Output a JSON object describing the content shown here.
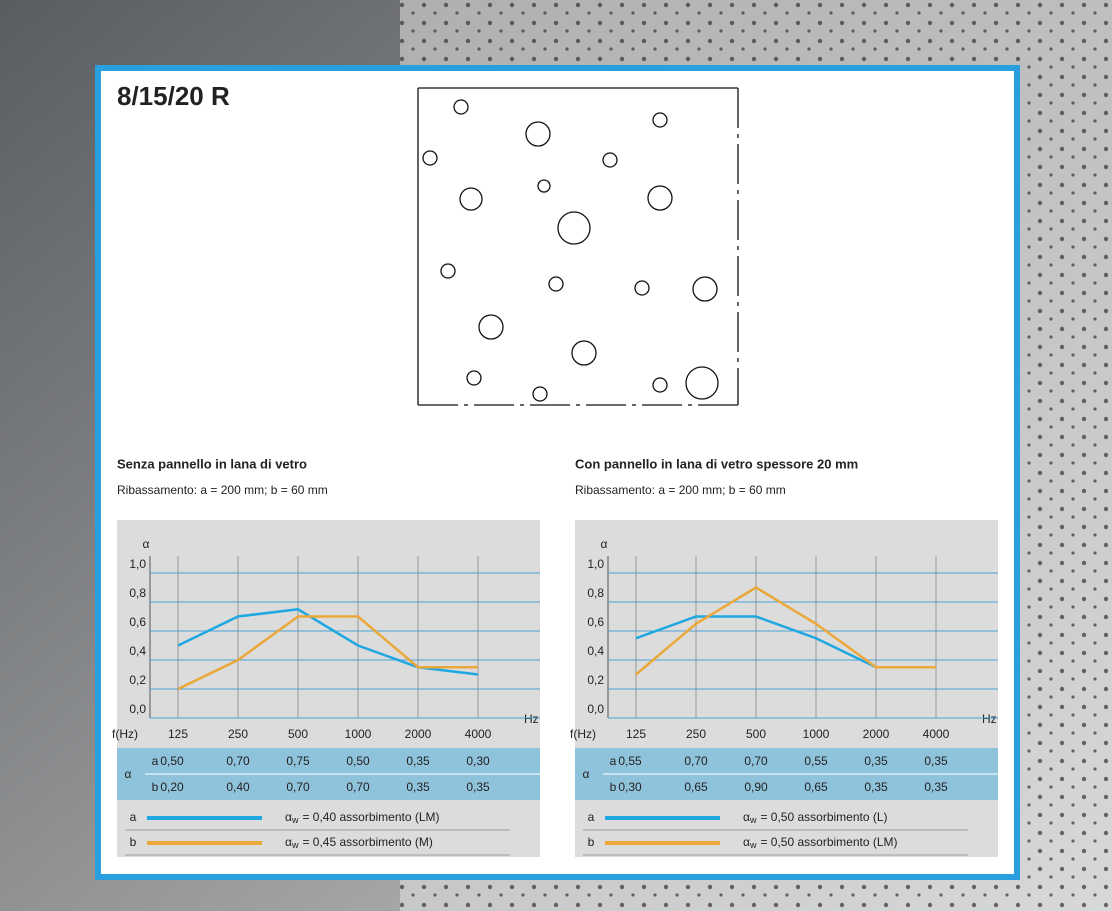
{
  "header": {
    "title": "8/15/20 R"
  },
  "chart_data": [
    {
      "type": "line",
      "title": "Senza pannello in lana di vetro",
      "subtitle": "Ribassamento: a = 200 mm; b = 60 mm",
      "y_label": "α",
      "x_label": "Hz",
      "x_lead": "f(Hz)",
      "table_label": "α",
      "categories": [
        "125",
        "250",
        "500",
        "1000",
        "2000",
        "4000"
      ],
      "ylim": [
        0,
        1.0
      ],
      "yticks": [
        {
          "value": 0,
          "label": "0,0"
        },
        {
          "value": 0.2,
          "label": "0,2"
        },
        {
          "value": 0.4,
          "label": "0,4"
        },
        {
          "value": 0.6,
          "label": "0,6"
        },
        {
          "value": 0.8,
          "label": "0,8"
        },
        {
          "value": 1.0,
          "label": "1,0"
        }
      ],
      "grid": true,
      "series": [
        {
          "name": "a",
          "color": "#1ea7e1",
          "values": [
            0.5,
            0.7,
            0.75,
            0.5,
            0.35,
            0.3
          ],
          "value_labels": [
            "0,50",
            "0,70",
            "0,75",
            "0,50",
            "0,35",
            "0,30"
          ],
          "legend_label": {
            "symbol": "α",
            "sub": "w",
            "text": "= 0,40 assorbimento (LM)"
          }
        },
        {
          "name": "b",
          "color": "#eba83a",
          "values": [
            0.2,
            0.4,
            0.7,
            0.7,
            0.35,
            0.35
          ],
          "value_labels": [
            "0,20",
            "0,40",
            "0,70",
            "0,70",
            "0,35",
            "0,35"
          ],
          "legend_label": {
            "symbol": "α",
            "sub": "w",
            "text": "= 0,45 assorbimento (M)"
          }
        }
      ]
    },
    {
      "type": "line",
      "title": "Con pannello in lana di vetro spessore 20 mm",
      "subtitle": "Ribassamento: a = 200 mm; b = 60 mm",
      "y_label": "α",
      "x_label": "Hz",
      "x_lead": "f(Hz)",
      "table_label": "α",
      "categories": [
        "125",
        "250",
        "500",
        "1000",
        "2000",
        "4000"
      ],
      "ylim": [
        0,
        1.0
      ],
      "yticks": [
        {
          "value": 0,
          "label": "0,0"
        },
        {
          "value": 0.2,
          "label": "0,2"
        },
        {
          "value": 0.4,
          "label": "0,4"
        },
        {
          "value": 0.6,
          "label": "0,6"
        },
        {
          "value": 0.8,
          "label": "0,8"
        },
        {
          "value": 1.0,
          "label": "1,0"
        }
      ],
      "grid": true,
      "series": [
        {
          "name": "a",
          "color": "#1ea7e1",
          "values": [
            0.55,
            0.7,
            0.7,
            0.55,
            0.35,
            0.35
          ],
          "value_labels": [
            "0,55",
            "0,70",
            "0,70",
            "0,55",
            "0,35",
            "0,35"
          ],
          "legend_label": {
            "symbol": "α",
            "sub": "w",
            "text": "= 0,50 assorbimento (L)"
          }
        },
        {
          "name": "b",
          "color": "#eba83a",
          "values": [
            0.3,
            0.65,
            0.9,
            0.65,
            0.35,
            0.35
          ],
          "value_labels": [
            "0,30",
            "0,65",
            "0,90",
            "0,65",
            "0,35",
            "0,35"
          ],
          "legend_label": {
            "symbol": "α",
            "sub": "w",
            "text": "= 0,50 assorbimento (LM)"
          }
        }
      ]
    }
  ]
}
